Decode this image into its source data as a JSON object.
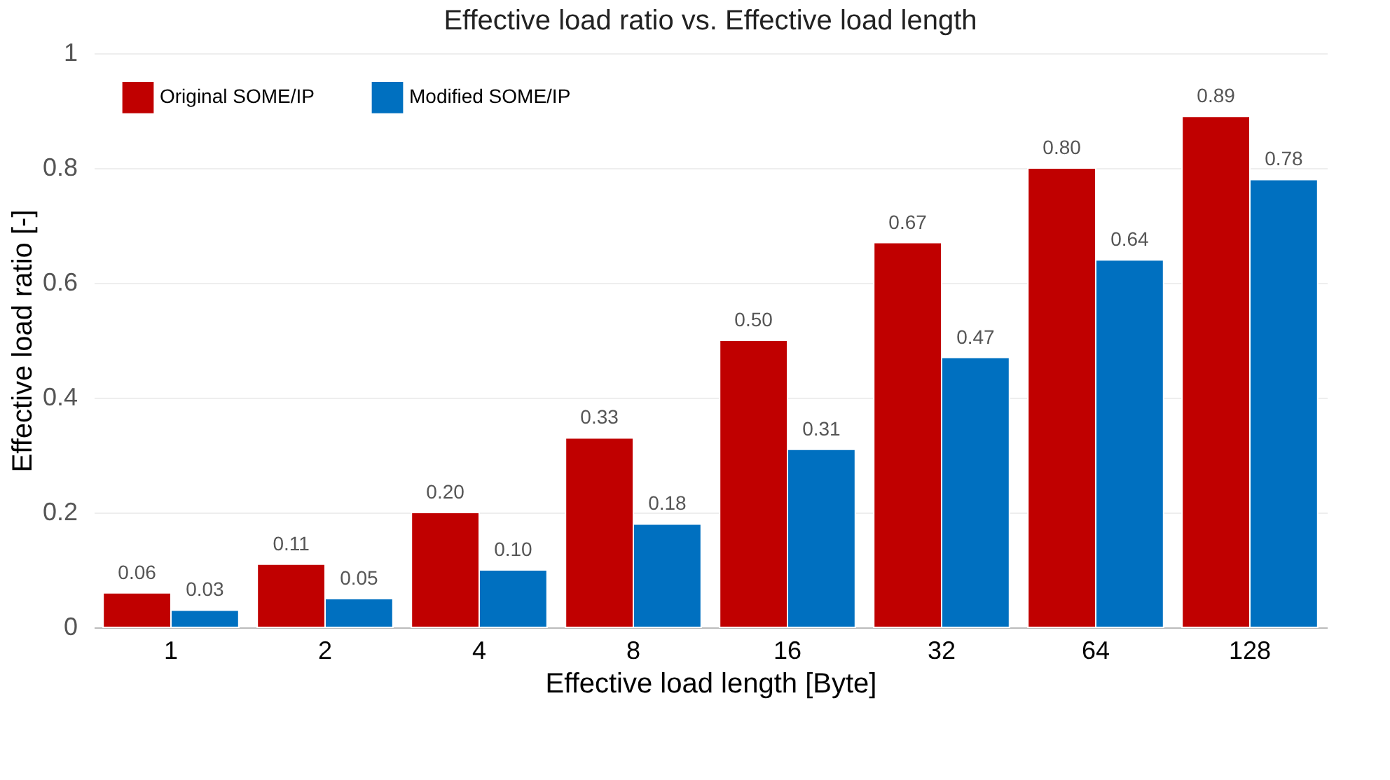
{
  "chart_data": {
    "type": "bar",
    "title": "Effective load ratio vs. Effective load length",
    "xlabel": "Effective load length [Byte]",
    "ylabel": "Effective load ratio [-]",
    "categories": [
      "1",
      "2",
      "4",
      "8",
      "16",
      "32",
      "64",
      "128"
    ],
    "series": [
      {
        "name": "Original SOME/IP",
        "color": "#c00000",
        "values": [
          0.06,
          0.11,
          0.2,
          0.33,
          0.5,
          0.67,
          0.8,
          0.89
        ],
        "value_labels": [
          "0.06",
          "0.11",
          "0.20",
          "0.33",
          "0.50",
          "0.67",
          "0.80",
          "0.89"
        ]
      },
      {
        "name": "Modified SOME/IP",
        "color": "#0070c0",
        "values": [
          0.03,
          0.05,
          0.1,
          0.18,
          0.31,
          0.47,
          0.64,
          0.78
        ],
        "value_labels": [
          "0.03",
          "0.05",
          "0.10",
          "0.18",
          "0.31",
          "0.47",
          "0.64",
          "0.78"
        ]
      }
    ],
    "ylim": [
      0,
      1
    ],
    "yticks": [
      0,
      0.2,
      0.4,
      0.6,
      0.8,
      1
    ],
    "grid": "y",
    "legend": "top left"
  }
}
